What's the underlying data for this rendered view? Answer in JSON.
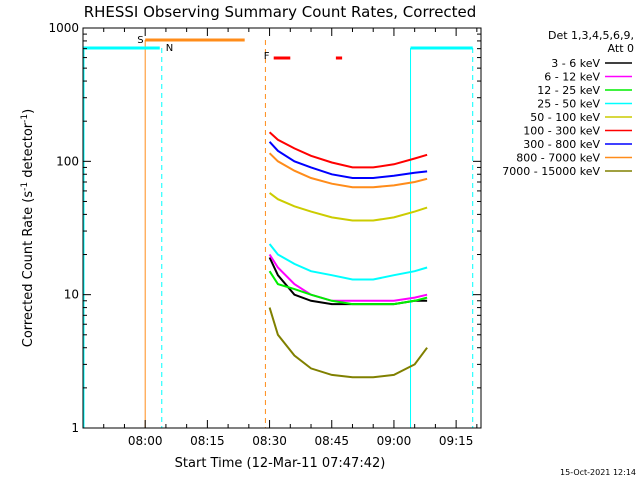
{
  "chart_data": {
    "type": "line",
    "title": "RHESSI Observing Summary Count Rates, Corrected",
    "xlabel": "Start Time (12-Mar-11 07:47:42)",
    "ylabel_main": "Corrected Count Rate (s",
    "ylabel_sup1": "-1",
    "ylabel_mid": " detector",
    "ylabel_sup2": "-1",
    "ylabel_end": ")",
    "yscale": "log",
    "ylim": [
      1,
      1000
    ],
    "xlim": [
      -15,
      81
    ],
    "x_tick_labels": [
      "08:00",
      "08:15",
      "08:30",
      "08:45",
      "09:00",
      "09:15"
    ],
    "x_tick_values": [
      0,
      15,
      30,
      45,
      60,
      75
    ],
    "y_tick_labels": [
      "1",
      "10",
      "100",
      "1000"
    ],
    "y_tick_values": [
      1,
      10,
      100,
      1000
    ],
    "legend_title_1": "Det 1,3,4,5,6,9,",
    "legend_title_2": "Att 0",
    "legend_placement": "right",
    "timestamp": "15-Oct-2021 12:14",
    "series": [
      {
        "name": "3 - 6 keV",
        "color": "#000000",
        "x": [
          30,
          32,
          36,
          40,
          45,
          50,
          55,
          60,
          65,
          68
        ],
        "y": [
          19,
          14,
          10,
          9,
          8.5,
          8.5,
          8.5,
          8.5,
          9,
          9
        ]
      },
      {
        "name": "6 - 12 keV",
        "color": "#ff00ff",
        "x": [
          30,
          32,
          36,
          40,
          45,
          50,
          55,
          60,
          65,
          68
        ],
        "y": [
          20,
          16,
          12,
          10,
          9,
          9,
          9,
          9,
          9.5,
          10
        ]
      },
      {
        "name": "12 - 25 keV",
        "color": "#00ee00",
        "x": [
          30,
          32,
          36,
          40,
          45,
          50,
          55,
          60,
          65,
          68
        ],
        "y": [
          15,
          12,
          11,
          10,
          9,
          8.5,
          8.5,
          8.5,
          9,
          9.5
        ]
      },
      {
        "name": "25 - 50 keV",
        "color": "#00ffff",
        "x": [
          30,
          32,
          36,
          40,
          45,
          50,
          55,
          60,
          65,
          68
        ],
        "y": [
          24,
          20,
          17,
          15,
          14,
          13,
          13,
          14,
          15,
          16
        ]
      },
      {
        "name": "50 - 100 keV",
        "color": "#cccc00",
        "x": [
          30,
          32,
          36,
          40,
          45,
          50,
          55,
          60,
          65,
          68
        ],
        "y": [
          58,
          52,
          46,
          42,
          38,
          36,
          36,
          38,
          42,
          45
        ]
      },
      {
        "name": "100 - 300 keV",
        "color": "#ff0000",
        "x": [
          30,
          32,
          36,
          40,
          45,
          50,
          55,
          60,
          65,
          68
        ],
        "y": [
          165,
          145,
          125,
          110,
          98,
          90,
          90,
          95,
          105,
          112
        ]
      },
      {
        "name": "300 - 800 keV",
        "color": "#0000ff",
        "x": [
          30,
          32,
          36,
          40,
          45,
          50,
          55,
          60,
          65,
          68
        ],
        "y": [
          140,
          120,
          100,
          90,
          80,
          75,
          75,
          78,
          82,
          84
        ]
      },
      {
        "name": "800 - 7000 keV",
        "color": "#ff8c1a",
        "x": [
          30,
          32,
          36,
          40,
          45,
          50,
          55,
          60,
          65,
          68
        ],
        "y": [
          115,
          100,
          85,
          75,
          68,
          64,
          64,
          66,
          70,
          74
        ]
      },
      {
        "name": "7000 - 15000 keV",
        "color": "#808000",
        "x": [
          30,
          32,
          36,
          40,
          45,
          50,
          55,
          60,
          65,
          68
        ],
        "y": [
          8,
          5,
          3.5,
          2.8,
          2.5,
          2.4,
          2.4,
          2.5,
          3,
          4
        ]
      }
    ],
    "annotations": {
      "saa_label": "S",
      "night_label": "N",
      "flare_label": "F",
      "saa_x": [
        -15,
        0,
        24,
        29
      ],
      "night_x": [
        -15,
        4,
        64,
        79
      ],
      "flare_x": [
        31,
        35,
        46,
        47.5
      ]
    }
  }
}
